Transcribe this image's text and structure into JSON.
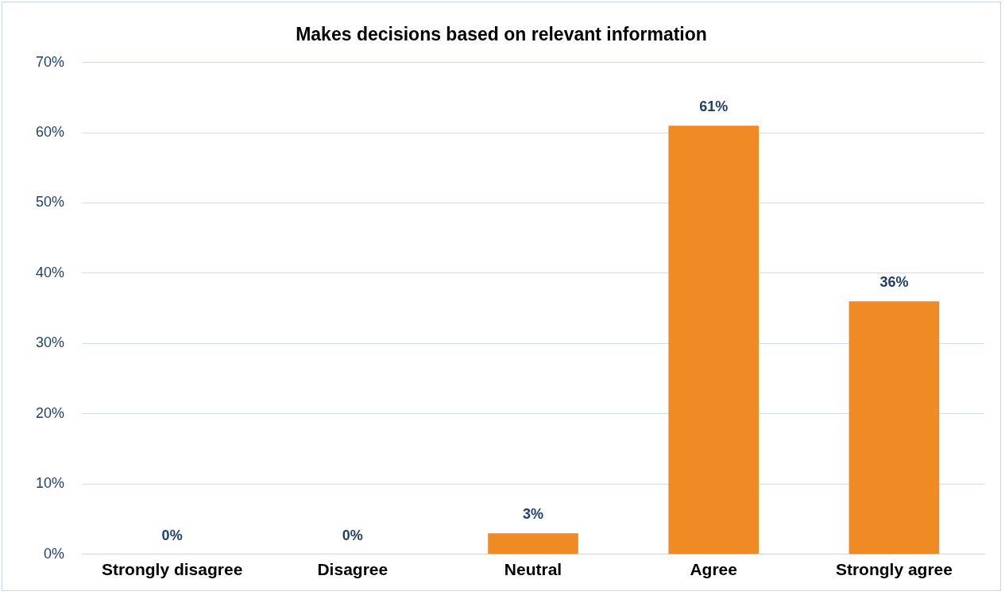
{
  "chart_data": {
    "type": "bar",
    "title": "Makes decisions based on relevant information",
    "categories": [
      "Strongly disagree",
      "Disagree",
      "Neutral",
      "Agree",
      "Strongly agree"
    ],
    "values": [
      0,
      0,
      3,
      61,
      36
    ],
    "value_labels": [
      "0%",
      "0%",
      "3%",
      "61%",
      "36%"
    ],
    "color": "#f08a24",
    "ylim": [
      0,
      70
    ],
    "yticks": [
      {
        "value": 0,
        "label": "0%"
      },
      {
        "value": 10,
        "label": "10%"
      },
      {
        "value": 20,
        "label": "20%"
      },
      {
        "value": 30,
        "label": "30%"
      },
      {
        "value": 40,
        "label": "40%"
      },
      {
        "value": 50,
        "label": "50%"
      },
      {
        "value": 60,
        "label": "60%"
      },
      {
        "value": 70,
        "label": "70%"
      }
    ],
    "grid": "y",
    "legend": false
  }
}
